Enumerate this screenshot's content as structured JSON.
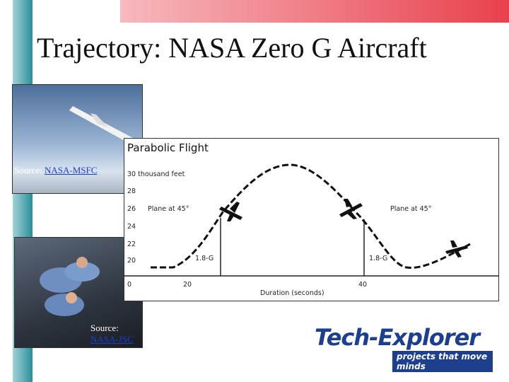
{
  "title": "Trajectory: NASA Zero G Aircraft",
  "photo_top": {
    "source_label": "Source:",
    "source_link": "NASA-MSFC"
  },
  "photo_bottom": {
    "source_label": "Source:",
    "source_link": "NASA-JSC"
  },
  "diagram": {
    "title": "Parabolic Flight",
    "y_labels": [
      "30 thousand feet",
      "28",
      "26",
      "24",
      "22",
      "20",
      "0"
    ],
    "x_labels": [
      "20",
      "40"
    ],
    "x_axis_label": "Duration (seconds)",
    "annotations": [
      "Plane at 45°",
      "Plane at 45°",
      "1.8-G",
      "1.8-G"
    ]
  },
  "logo": {
    "name": "Tech-Explorer",
    "tagline": "projects that move minds"
  }
}
